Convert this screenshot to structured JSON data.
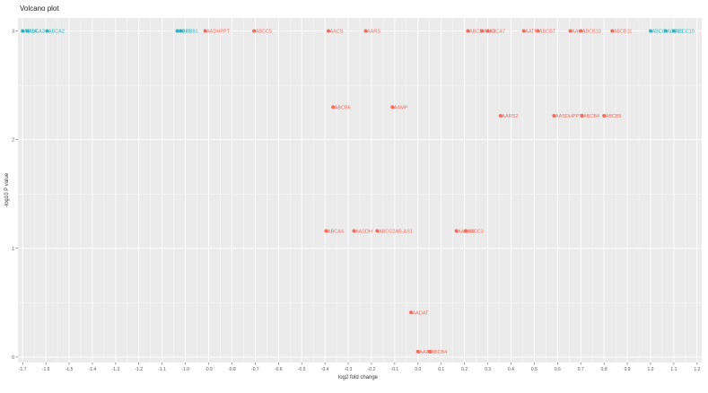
{
  "chart_data": {
    "type": "scatter",
    "title": "Volcano plot",
    "xlabel": "log2 fold change",
    "ylabel": "-log10 P value",
    "xlim": [
      -1.72,
      1.22
    ],
    "ylim": [
      -0.05,
      3.12
    ],
    "x_ticks": [
      "-1.7",
      "-1.6",
      "-1.5",
      "-1.4",
      "-1.3",
      "-1.2",
      "-1.1",
      "-1.0",
      "-0.9",
      "-0.8",
      "-0.7",
      "-0.6",
      "-0.5",
      "-0.4",
      "-0.3",
      "-0.2",
      "-0.1",
      "0.0",
      "0.1",
      "0.2",
      "0.3",
      "0.4",
      "0.5",
      "0.6",
      "0.7",
      "0.8",
      "0.9",
      "1.0",
      "1.1",
      "1.2"
    ],
    "y_ticks": [
      "0",
      "1",
      "2",
      "3"
    ],
    "grid": true,
    "legend": "none",
    "colors": {
      "down": "#2ab7c6",
      "up": "#f26e5f",
      "panel": "#ebebeb",
      "grid": "#ffffff"
    },
    "points": [
      {
        "x": -1.7,
        "y": 3.0,
        "label": "ABCA",
        "group": "down"
      },
      {
        "x": -1.68,
        "y": 3.0,
        "label": "ABCA3",
        "group": "down"
      },
      {
        "x": -1.595,
        "y": 3.0,
        "label": "ABCA2",
        "group": "down"
      },
      {
        "x": -1.035,
        "y": 3.0,
        "label": "ABCB",
        "group": "down"
      },
      {
        "x": -1.02,
        "y": 3.0,
        "label": "ABCB1",
        "group": "down"
      },
      {
        "x": -0.915,
        "y": 3.0,
        "label": "AADHPPT",
        "group": "up"
      },
      {
        "x": -0.705,
        "y": 3.0,
        "label": "ABCC5",
        "group": "up"
      },
      {
        "x": -0.385,
        "y": 3.0,
        "label": "AACS",
        "group": "up"
      },
      {
        "x": -0.225,
        "y": 3.0,
        "label": "AARS",
        "group": "up"
      },
      {
        "x": 0.215,
        "y": 3.0,
        "label": "ABCB",
        "group": "up"
      },
      {
        "x": 0.275,
        "y": 3.0,
        "label": "AAK1",
        "group": "up"
      },
      {
        "x": 0.3,
        "y": 3.0,
        "label": "ABCA7",
        "group": "up"
      },
      {
        "x": 0.455,
        "y": 3.0,
        "label": "AATF",
        "group": "up"
      },
      {
        "x": 0.515,
        "y": 3.0,
        "label": "ABCB7",
        "group": "up"
      },
      {
        "x": 0.655,
        "y": 3.0,
        "label": "AAGA",
        "group": "up"
      },
      {
        "x": 0.7,
        "y": 3.0,
        "label": "ABCB10",
        "group": "up"
      },
      {
        "x": 0.835,
        "y": 3.0,
        "label": "ABCB11",
        "group": "up"
      },
      {
        "x": 1.0,
        "y": 3.0,
        "label": "ABCC",
        "group": "down"
      },
      {
        "x": 1.065,
        "y": 3.0,
        "label": "ABCC1",
        "group": "down"
      },
      {
        "x": 1.1,
        "y": 3.0,
        "label": "ABCC10",
        "group": "down"
      },
      {
        "x": -0.365,
        "y": 2.3,
        "label": "ABCB6",
        "group": "up"
      },
      {
        "x": -0.11,
        "y": 2.3,
        "label": "AAMP",
        "group": "up"
      },
      {
        "x": 0.355,
        "y": 2.22,
        "label": "AARS2",
        "group": "up"
      },
      {
        "x": 0.585,
        "y": 2.22,
        "label": "AASDHPPT",
        "group": "up"
      },
      {
        "x": 0.705,
        "y": 2.22,
        "label": "ABCB4",
        "group": "up"
      },
      {
        "x": 0.8,
        "y": 2.22,
        "label": "ABCB5",
        "group": "up"
      },
      {
        "x": -0.395,
        "y": 1.16,
        "label": "ABCA4",
        "group": "up"
      },
      {
        "x": -0.275,
        "y": 1.16,
        "label": "AASDH",
        "group": "up"
      },
      {
        "x": -0.175,
        "y": 1.16,
        "label": "ABCC2AB-AS1",
        "group": "up"
      },
      {
        "x": 0.165,
        "y": 1.16,
        "label": "AAGAB",
        "group": "up"
      },
      {
        "x": 0.205,
        "y": 1.16,
        "label": "ABCC3",
        "group": "up"
      },
      {
        "x": -0.03,
        "y": 0.41,
        "label": "AADAT",
        "group": "up"
      },
      {
        "x": 0.0,
        "y": 0.05,
        "label": "AAAS",
        "group": "up"
      },
      {
        "x": 0.05,
        "y": 0.05,
        "label": "ABCB4",
        "group": "up"
      }
    ]
  }
}
